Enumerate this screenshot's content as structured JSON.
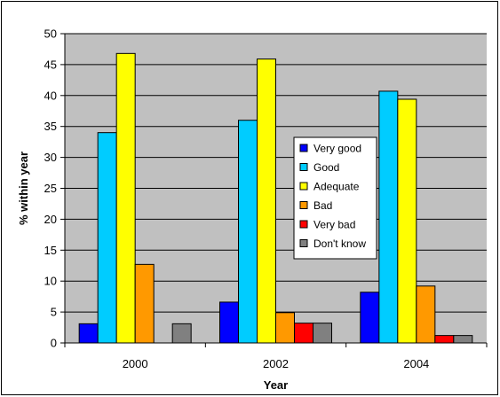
{
  "chart_data": {
    "type": "bar",
    "categories": [
      "2000",
      "2002",
      "2004"
    ],
    "series": [
      {
        "name": "Very good",
        "color": "#0000ff",
        "values": [
          3.1,
          6.6,
          8.2
        ]
      },
      {
        "name": "Good",
        "color": "#00ccff",
        "values": [
          34.0,
          36.0,
          40.7
        ]
      },
      {
        "name": "Adequate",
        "color": "#ffff00",
        "values": [
          46.8,
          45.9,
          39.4
        ]
      },
      {
        "name": "Bad",
        "color": "#ff9900",
        "values": [
          12.7,
          4.9,
          9.2
        ]
      },
      {
        "name": "Very bad",
        "color": "#ff0000",
        "values": [
          0,
          3.2,
          1.2
        ]
      },
      {
        "name": "Don't know",
        "color": "#808080",
        "values": [
          3.1,
          3.2,
          1.2
        ]
      }
    ],
    "title": "",
    "xlabel": "Year",
    "ylabel": "% within year",
    "ylim": [
      0,
      50
    ],
    "yticks": [
      "0",
      "5",
      "10",
      "15",
      "20",
      "25",
      "30",
      "35",
      "40",
      "45",
      "50"
    ],
    "plot_background": "#c0c0c0",
    "grid": true,
    "legend_position": "center-right"
  }
}
